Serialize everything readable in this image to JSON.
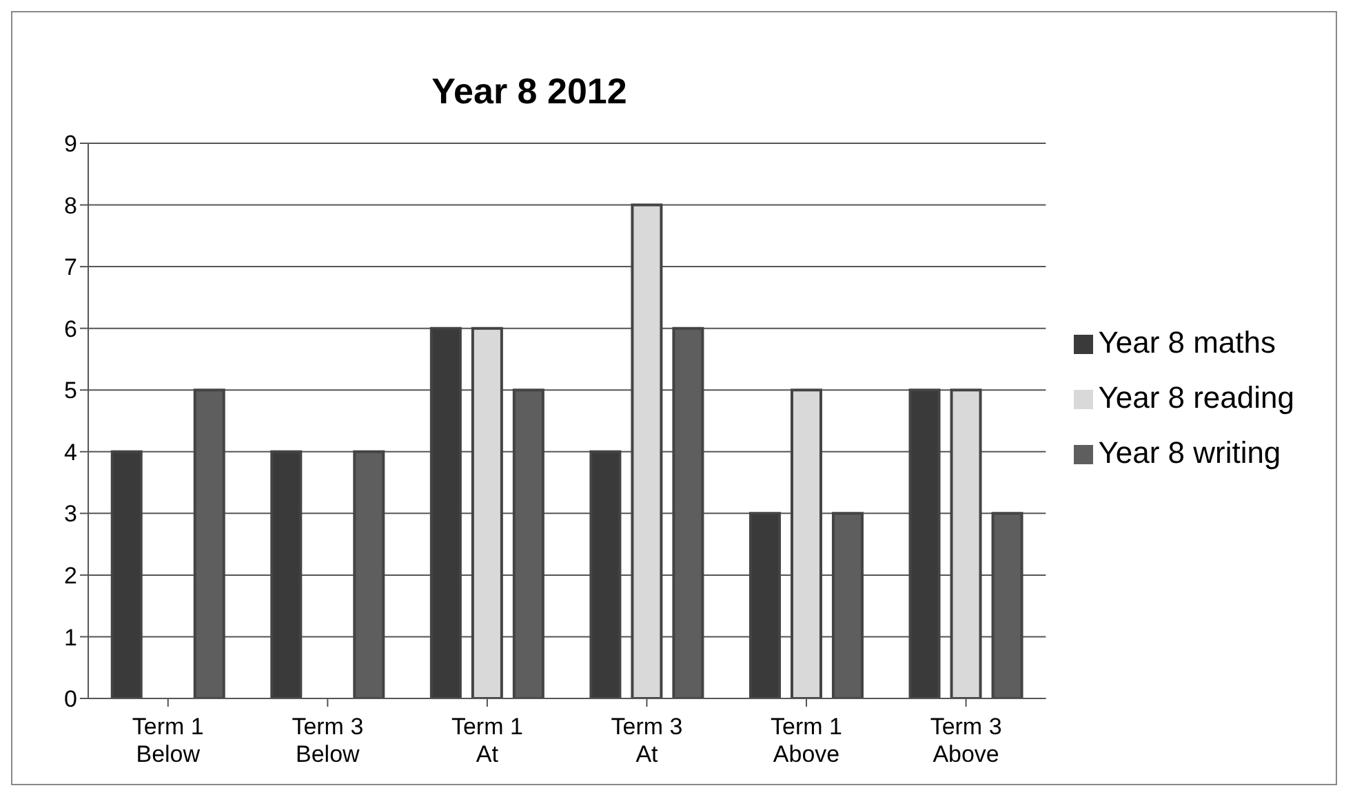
{
  "chart_data": {
    "type": "bar",
    "title": "Year 8 2012",
    "categories": [
      "Term 1 Below",
      "Term 3 Below",
      "Term 1 At",
      "Term 3 At",
      "Term 1 Above",
      "Term 3 Above"
    ],
    "series": [
      {
        "name": "Year 8 maths",
        "color": "#3a3a3a",
        "values": [
          4,
          4,
          6,
          4,
          3,
          5
        ]
      },
      {
        "name": "Year 8 reading",
        "color": "#d9d9d9",
        "values": [
          0,
          0,
          6,
          8,
          5,
          5
        ]
      },
      {
        "name": "Year 8 writing",
        "color": "#5e5e5e",
        "values": [
          5,
          4,
          5,
          6,
          3,
          3
        ]
      }
    ],
    "ylim": [
      0,
      9
    ],
    "yticks": [
      0,
      1,
      2,
      3,
      4,
      5,
      6,
      7,
      8,
      9
    ],
    "grid": "y",
    "legend": "right"
  }
}
